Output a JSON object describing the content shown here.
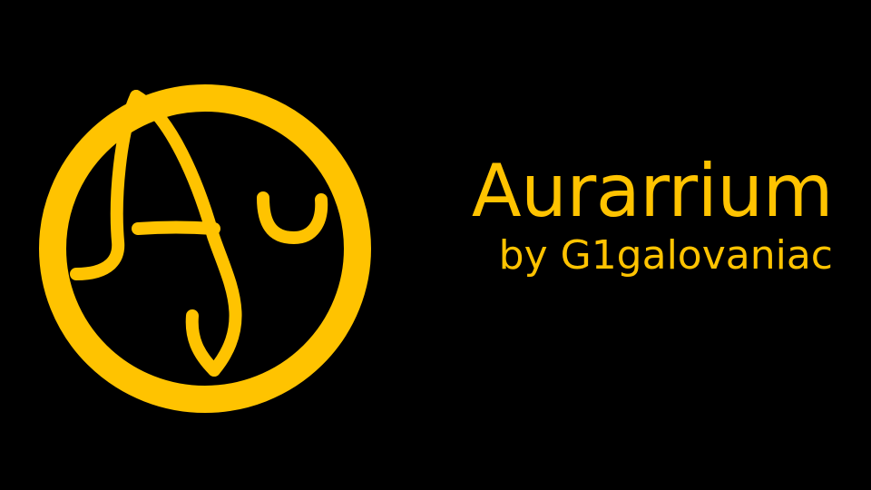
{
  "brand": {
    "title": "Aurarrium",
    "subtitle": "by G1galovaniac",
    "logo_icon": "au-circle-logo-icon"
  },
  "colors": {
    "background": "#000000",
    "accent": "#FFC300"
  }
}
